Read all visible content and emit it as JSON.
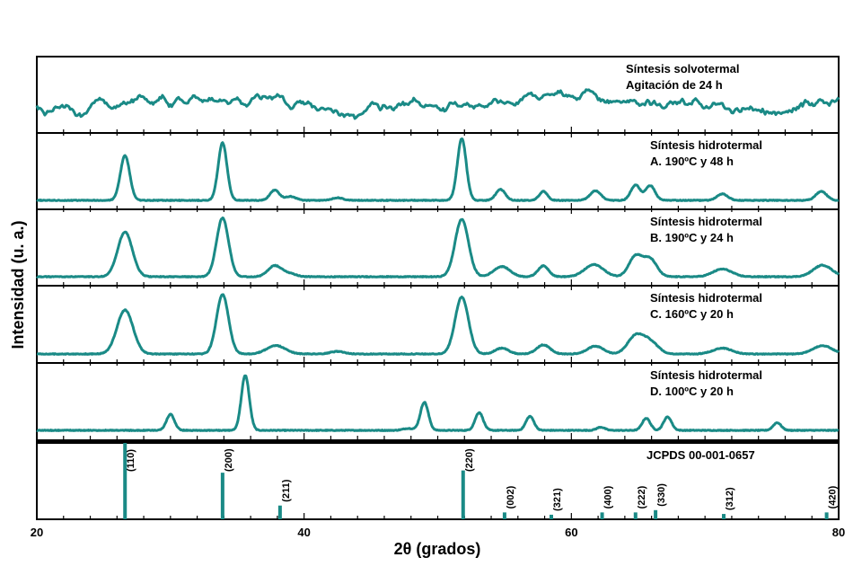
{
  "chart_data": {
    "type": "line",
    "xlabel": "2θ (grados)",
    "ylabel": "Intensidad (u. a.)",
    "xlim": [
      20,
      80
    ],
    "x_ticks": [
      20,
      40,
      60,
      80
    ],
    "color": "#1a8a86",
    "series": [
      {
        "name": "Síntesis solvotermal",
        "label_lines": [
          "Síntesis solvotermal",
          "Agitación de 24 h"
        ],
        "kind": "amorphous",
        "peaks": []
      },
      {
        "name": "Síntesis hidrotermal A. 190ºC y 48 h",
        "label_lines": [
          "Síntesis hidrotermal",
          "A. 190ºC y 48 h"
        ],
        "kind": "xrd",
        "peaks": [
          {
            "x": 26.6,
            "h": 0.7,
            "w": 0.35
          },
          {
            "x": 33.9,
            "h": 0.9,
            "w": 0.33
          },
          {
            "x": 37.8,
            "h": 0.16,
            "w": 0.35
          },
          {
            "x": 39.0,
            "h": 0.06,
            "w": 0.4
          },
          {
            "x": 42.5,
            "h": 0.04,
            "w": 0.4
          },
          {
            "x": 51.8,
            "h": 0.97,
            "w": 0.33
          },
          {
            "x": 54.7,
            "h": 0.17,
            "w": 0.35
          },
          {
            "x": 57.9,
            "h": 0.14,
            "w": 0.3
          },
          {
            "x": 61.8,
            "h": 0.15,
            "w": 0.4
          },
          {
            "x": 64.8,
            "h": 0.24,
            "w": 0.35
          },
          {
            "x": 65.9,
            "h": 0.23,
            "w": 0.35
          },
          {
            "x": 71.3,
            "h": 0.1,
            "w": 0.4
          },
          {
            "x": 78.7,
            "h": 0.14,
            "w": 0.4
          }
        ]
      },
      {
        "name": "Síntesis hidrotermal B. 190ºC y 24 h",
        "label_lines": [
          "Síntesis hidrotermal",
          "B. 190ºC y 24 h"
        ],
        "kind": "xrd",
        "peaks": [
          {
            "x": 26.6,
            "h": 0.7,
            "w": 0.55
          },
          {
            "x": 33.9,
            "h": 0.92,
            "w": 0.45
          },
          {
            "x": 37.8,
            "h": 0.17,
            "w": 0.5
          },
          {
            "x": 38.9,
            "h": 0.05,
            "w": 0.5
          },
          {
            "x": 51.8,
            "h": 0.9,
            "w": 0.5
          },
          {
            "x": 54.8,
            "h": 0.16,
            "w": 0.6
          },
          {
            "x": 57.9,
            "h": 0.17,
            "w": 0.4
          },
          {
            "x": 61.7,
            "h": 0.19,
            "w": 0.7
          },
          {
            "x": 64.8,
            "h": 0.32,
            "w": 0.5
          },
          {
            "x": 65.9,
            "h": 0.27,
            "w": 0.5
          },
          {
            "x": 71.3,
            "h": 0.12,
            "w": 0.7
          },
          {
            "x": 78.8,
            "h": 0.18,
            "w": 0.7
          }
        ]
      },
      {
        "name": "Síntesis hidrotermal C. 160ºC y 20 h",
        "label_lines": [
          "Síntesis hidrotermal",
          "C. 160ºC y 20 h"
        ],
        "kind": "xrd",
        "peaks": [
          {
            "x": 26.6,
            "h": 0.68,
            "w": 0.6
          },
          {
            "x": 33.9,
            "h": 0.92,
            "w": 0.45
          },
          {
            "x": 37.9,
            "h": 0.13,
            "w": 0.7
          },
          {
            "x": 42.5,
            "h": 0.04,
            "w": 0.5
          },
          {
            "x": 51.8,
            "h": 0.88,
            "w": 0.5
          },
          {
            "x": 54.8,
            "h": 0.09,
            "w": 0.5
          },
          {
            "x": 57.9,
            "h": 0.14,
            "w": 0.5
          },
          {
            "x": 61.8,
            "h": 0.12,
            "w": 0.6
          },
          {
            "x": 64.8,
            "h": 0.27,
            "w": 0.6
          },
          {
            "x": 65.9,
            "h": 0.18,
            "w": 0.6
          },
          {
            "x": 71.3,
            "h": 0.09,
            "w": 0.7
          },
          {
            "x": 78.8,
            "h": 0.13,
            "w": 0.7
          }
        ]
      },
      {
        "name": "Síntesis hidrotermal D. 100ºC y 20 h",
        "label_lines": [
          "Síntesis hidrotermal",
          "D. 100ºC y 20 h"
        ],
        "kind": "xrd",
        "peaks": [
          {
            "x": 30.0,
            "h": 0.25,
            "w": 0.3
          },
          {
            "x": 35.6,
            "h": 0.86,
            "w": 0.3
          },
          {
            "x": 47.8,
            "h": 0.03,
            "w": 0.4
          },
          {
            "x": 49.0,
            "h": 0.44,
            "w": 0.3
          },
          {
            "x": 53.1,
            "h": 0.28,
            "w": 0.3
          },
          {
            "x": 56.9,
            "h": 0.22,
            "w": 0.3
          },
          {
            "x": 62.2,
            "h": 0.05,
            "w": 0.3
          },
          {
            "x": 65.6,
            "h": 0.19,
            "w": 0.3
          },
          {
            "x": 67.2,
            "h": 0.21,
            "w": 0.3
          },
          {
            "x": 75.4,
            "h": 0.12,
            "w": 0.3
          }
        ]
      }
    ],
    "reference": {
      "name": "JCPDS 00-001-0657",
      "lines": [
        {
          "x": 26.6,
          "rel": 1.0,
          "hkl": "(110)"
        },
        {
          "x": 33.9,
          "rel": 0.61,
          "hkl": "(200)"
        },
        {
          "x": 38.2,
          "rel": 0.18,
          "hkl": "(211)"
        },
        {
          "x": 51.9,
          "rel": 0.64,
          "hkl": "(220)"
        },
        {
          "x": 55.0,
          "rel": 0.09,
          "hkl": "(002)"
        },
        {
          "x": 58.5,
          "rel": 0.06,
          "hkl": "(321)"
        },
        {
          "x": 62.3,
          "rel": 0.09,
          "hkl": "(400)"
        },
        {
          "x": 64.8,
          "rel": 0.09,
          "hkl": "(222)"
        },
        {
          "x": 66.3,
          "rel": 0.12,
          "hkl": "(330)"
        },
        {
          "x": 71.4,
          "rel": 0.07,
          "hkl": "(312)"
        },
        {
          "x": 79.1,
          "rel": 0.09,
          "hkl": "(420)"
        }
      ]
    }
  }
}
